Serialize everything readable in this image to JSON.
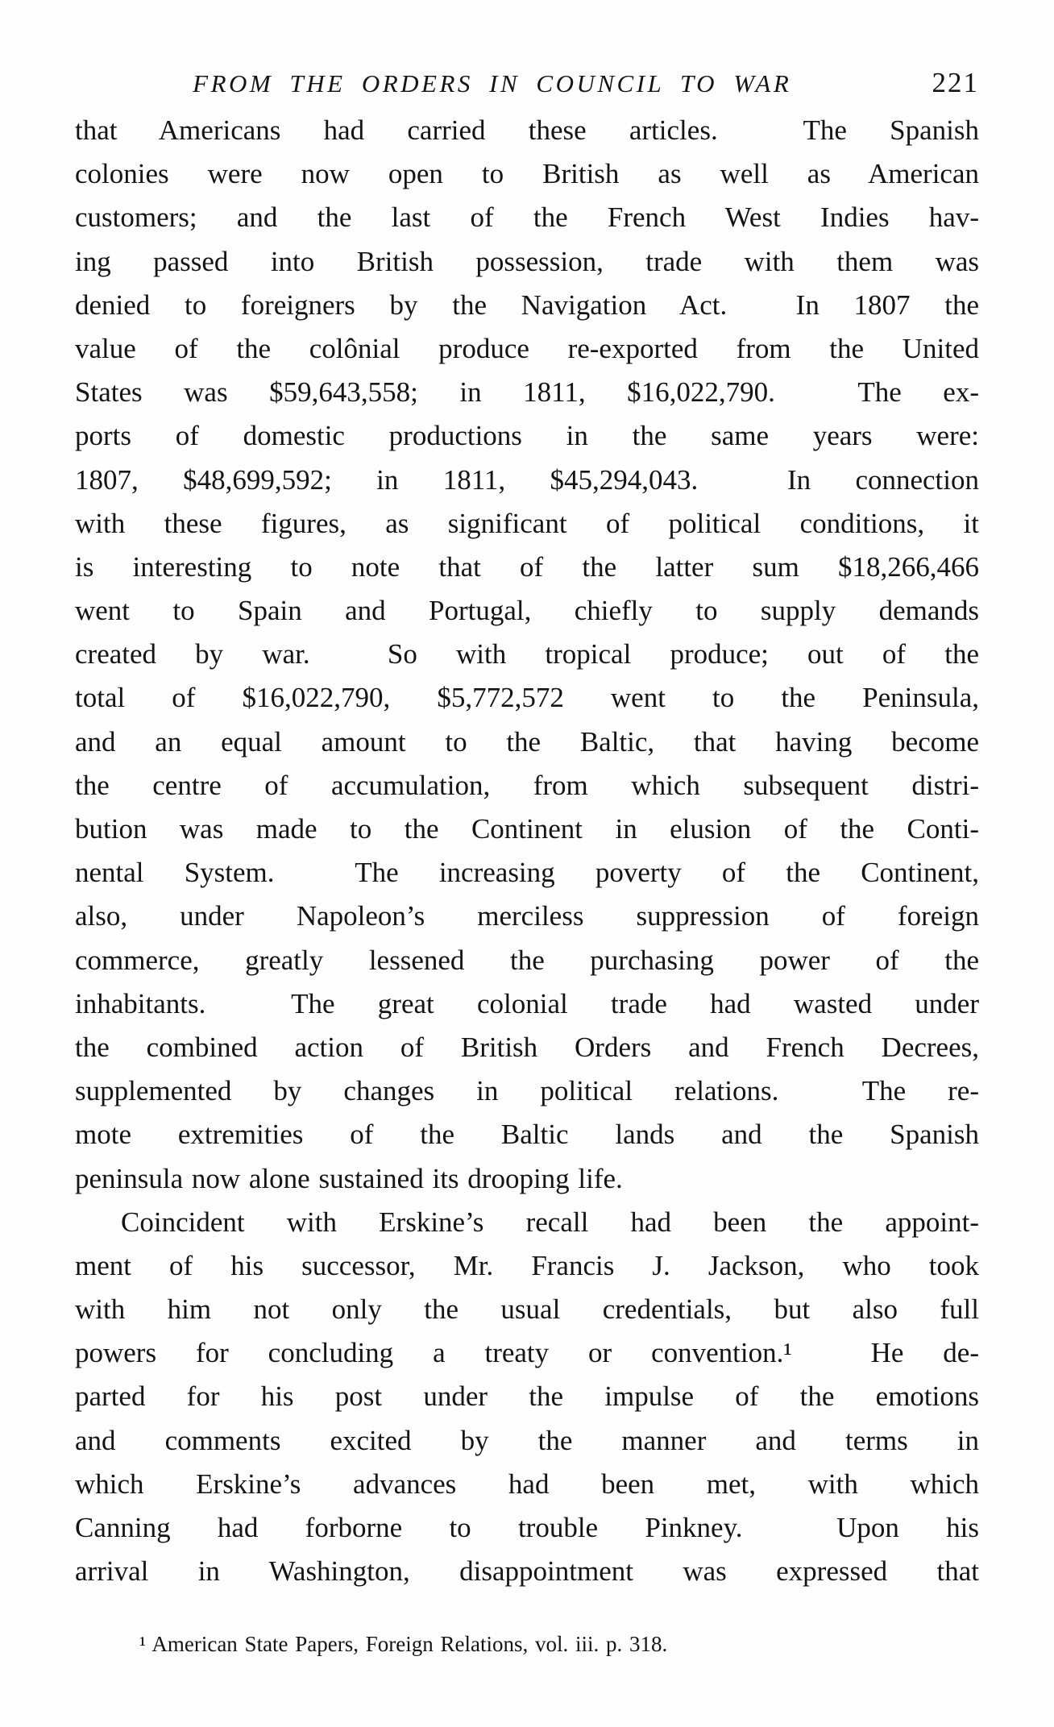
{
  "document": {
    "header": {
      "title": "FROM THE ORDERS IN COUNCIL TO WAR",
      "page_number": "221"
    },
    "body_lines": [
      "that Americans had carried these articles.  The Spanish",
      "colonies were now open to British as well as American",
      "customers; and the last of the French West Indies hav-",
      "ing passed into British possession, trade with them was",
      "denied to foreigners by the Navigation Act.  In 1807 the",
      "value of the colônial produce re-exported from the United",
      "States was $59,643,558; in 1811, $16,022,790.  The ex-",
      "ports of domestic productions in the same years were:",
      "1807, $48,699,592; in 1811, $45,294,043.  In connection",
      "with these figures, as significant of political conditions, it",
      "is interesting to note that of the latter sum $18,266,466",
      "went to Spain and Portugal, chiefly to supply demands",
      "created by war.  So with tropical produce; out of the",
      "total of $16,022,790, $5,772,572 went to the Peninsula,",
      "and an equal amount to the Baltic, that having become",
      "the centre of accumulation, from which subsequent distri-",
      "bution was made to the Continent in elusion of the Conti-",
      "nental System.  The increasing poverty of the Continent,",
      "also, under Napoleon’s merciless suppression of foreign",
      "commerce, greatly lessened the purchasing power of the",
      "inhabitants.  The great colonial trade had wasted under",
      "the combined action of British Orders and French Decrees,",
      "supplemented by changes in political relations.  The re-",
      "mote extremities of the Baltic lands and the Spanish",
      "peninsula now alone sustained its drooping life.",
      "Coincident with Erskine’s recall had been the appoint-",
      "ment of his successor, Mr. Francis J. Jackson, who took",
      "with him not only the usual credentials, but also full",
      "powers for concluding a treaty or convention.¹  He de-",
      "parted for his post under the impulse of the emotions",
      "and comments excited by the manner and terms in",
      "which Erskine’s advances had been met, with which",
      "Canning had forborne to trouble Pinkney.  Upon his",
      "arrival in Washington, disappointment was expressed that"
    ],
    "footnote": "¹ American State Papers, Foreign Relations, vol. iii. p. 318."
  }
}
